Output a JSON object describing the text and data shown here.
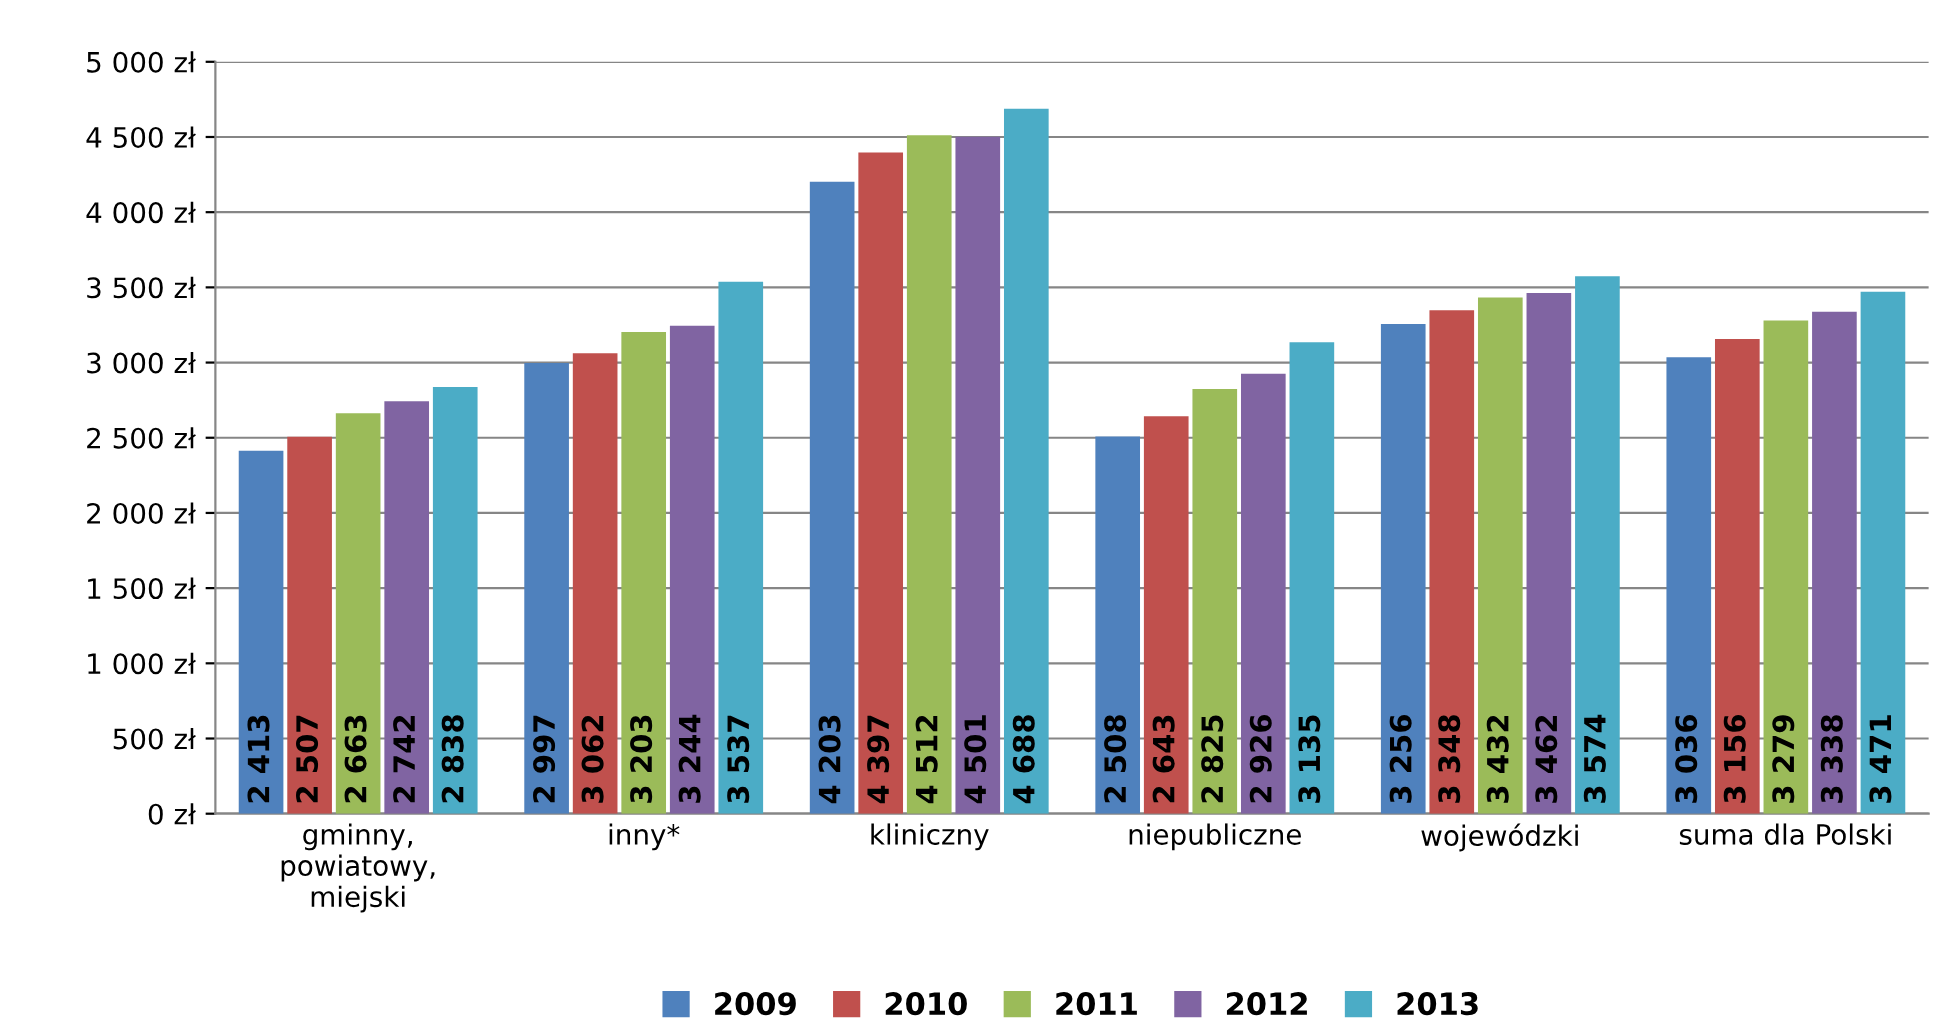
{
  "chart_data": {
    "type": "bar",
    "categories": [
      "gminny,\npowiatowy,\nmiejski",
      "inny*",
      "kliniczny",
      "niepubliczne",
      "wojewódzki",
      "suma dla Polski"
    ],
    "series": [
      {
        "name": "2009",
        "color": "#4f81bd",
        "values": [
          2413,
          2997,
          4203,
          2508,
          3256,
          3036
        ],
        "value_labels": [
          "2 413",
          "2 997",
          "4 203",
          "2 508",
          "3 256",
          "3 036"
        ]
      },
      {
        "name": "2010",
        "color": "#c0504d",
        "values": [
          2507,
          3062,
          4397,
          2643,
          3348,
          3156
        ],
        "value_labels": [
          "2 507",
          "3 062",
          "4 397",
          "2 643",
          "3 348",
          "3 156"
        ]
      },
      {
        "name": "2011",
        "color": "#9bbb59",
        "values": [
          2663,
          3203,
          4512,
          2825,
          3432,
          3279
        ],
        "value_labels": [
          "2 663",
          "3 203",
          "4 512",
          "2 825",
          "3 432",
          "3 279"
        ]
      },
      {
        "name": "2012",
        "color": "#8064a2",
        "values": [
          2742,
          3244,
          4501,
          2926,
          3462,
          3338
        ],
        "value_labels": [
          "2 742",
          "3 244",
          "4 501",
          "2 926",
          "3 462",
          "3 338"
        ]
      },
      {
        "name": "2013",
        "color": "#4bacc6",
        "values": [
          2838,
          3537,
          4688,
          3135,
          3574,
          3471
        ],
        "value_labels": [
          "2 838",
          "3 537",
          "4 688",
          "3 135",
          "3 574",
          "3 471"
        ]
      }
    ],
    "ylim": [
      0,
      5000
    ],
    "yticks": [
      {
        "value": 0,
        "label": "0 zł"
      },
      {
        "value": 500,
        "label": "500 zł"
      },
      {
        "value": 1000,
        "label": "1 000 zł"
      },
      {
        "value": 1500,
        "label": "1 500 zł"
      },
      {
        "value": 2000,
        "label": "2 000 zł"
      },
      {
        "value": 2500,
        "label": "2 500 zł"
      },
      {
        "value": 3000,
        "label": "3 000 zł"
      },
      {
        "value": 3500,
        "label": "3 500 zł"
      },
      {
        "value": 4000,
        "label": "4 000 zł"
      },
      {
        "value": 4500,
        "label": "4 500 zł"
      },
      {
        "value": 5000,
        "label": "5 000 zł"
      }
    ],
    "grid": "y",
    "legend": "bottom"
  }
}
